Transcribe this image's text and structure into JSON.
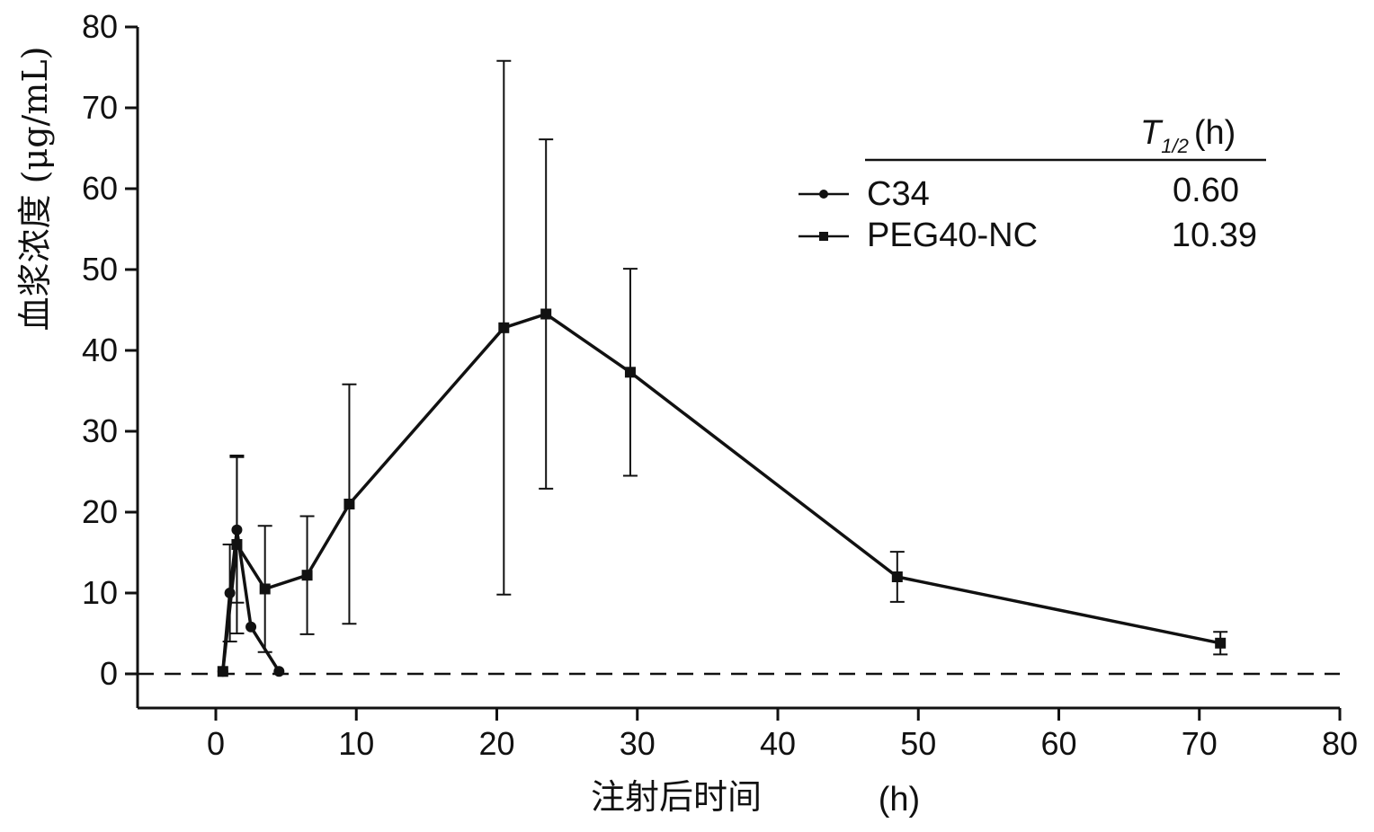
{
  "chart_data": {
    "type": "line",
    "title": "",
    "xlabel": "注射后时间",
    "xunit": "(h)",
    "ylabel": "血浆浓度 (μg/mL)",
    "xlim": [
      -5,
      80
    ],
    "ylim": [
      0,
      80
    ],
    "xticks": [
      0,
      10,
      20,
      30,
      40,
      50,
      60,
      70,
      80
    ],
    "yticks": [
      0,
      10,
      20,
      30,
      40,
      50,
      60,
      70,
      80
    ],
    "zero_line": "dashed",
    "grid": false,
    "legend_position": "top-right",
    "legend_header": {
      "symbol": "T",
      "subscript": "1/2",
      "unit": "(h)"
    },
    "series": [
      {
        "name": "C34",
        "marker": "circle",
        "t_half": "0.60",
        "points": [
          {
            "x": 0.5,
            "y": 0.3,
            "err": 0
          },
          {
            "x": 1.0,
            "y": 10.0,
            "err": 6.0
          },
          {
            "x": 1.5,
            "y": 17.8,
            "err": 9.0
          },
          {
            "x": 2.5,
            "y": 5.8,
            "err": 0
          },
          {
            "x": 4.5,
            "y": 0.3,
            "err": 0
          }
        ]
      },
      {
        "name": "PEG40-NC",
        "marker": "square",
        "t_half": "10.39",
        "points": [
          {
            "x": 0.5,
            "y": 0.3,
            "err": 0
          },
          {
            "x": 1.5,
            "y": 16.0,
            "err": 11.0
          },
          {
            "x": 3.5,
            "y": 10.5,
            "err": 7.8
          },
          {
            "x": 6.5,
            "y": 12.2,
            "err": 7.3
          },
          {
            "x": 9.5,
            "y": 21.0,
            "err": 14.8
          },
          {
            "x": 20.5,
            "y": 42.8,
            "err": 33.0
          },
          {
            "x": 23.5,
            "y": 44.5,
            "err": 21.6
          },
          {
            "x": 29.5,
            "y": 37.3,
            "err": 12.8
          },
          {
            "x": 48.5,
            "y": 12.0,
            "err": 3.1
          },
          {
            "x": 71.5,
            "y": 3.8,
            "err": 1.4
          }
        ]
      }
    ]
  }
}
